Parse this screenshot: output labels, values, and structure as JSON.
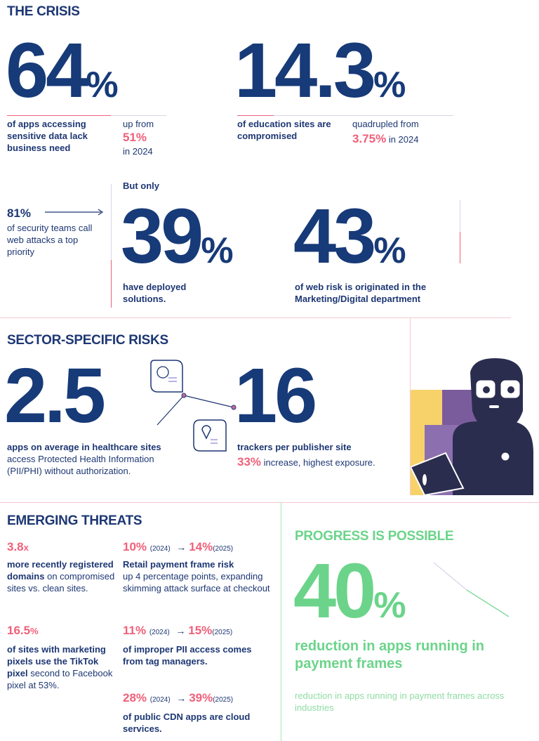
{
  "crisis": {
    "title": "THE CRISIS",
    "stat1": {
      "value": "64",
      "unit": "%",
      "desc": "of apps accessing sensitive data lack business need",
      "prev_label": "up from",
      "prev_value": "51%",
      "prev_year": "in 2024"
    },
    "stat2": {
      "value": "14.3",
      "unit": "%",
      "desc": "of education sites are compromised",
      "prev_label": "quadrupled from",
      "prev_value": "3.75%",
      "prev_year": "in 2024"
    },
    "stat3": {
      "value": "81%",
      "desc": "of security teams call web attacks a top priority"
    },
    "stat4": {
      "intro": "But only",
      "value": "39",
      "unit": "%",
      "desc": "have deployed solutions."
    },
    "stat5": {
      "value": "43",
      "unit": "%",
      "desc": "of web risk is originated in the Marketing/Digital department"
    }
  },
  "sector": {
    "title": "SECTOR-SPECIFIC RISKS",
    "stat1": {
      "value": "2.5",
      "desc_bold": "apps on average in healthcare sites",
      "desc": "access Protected Health Information (PII/PHI) without authorization."
    },
    "stat2": {
      "value": "16",
      "desc_bold": "trackers per publisher site",
      "pct": "33%",
      "desc": "increase, highest exposure."
    },
    "icons": [
      "health-document-icon",
      "location-document-icon"
    ]
  },
  "emerging": {
    "title": "EMERGING THREATS",
    "items": [
      {
        "value": "3.8",
        "unit": "x",
        "desc_bold": "more recently registered domains",
        "desc": "on compromised sites vs. clean sites."
      },
      {
        "from": "10%",
        "from_year": "(2024)",
        "to": "14%",
        "to_year": "(2025)",
        "desc_bold": "Retail payment frame risk",
        "desc": "up 4 percentage points, expanding skimming attack surface at checkout"
      },
      {
        "value": "16.5",
        "unit": "%",
        "desc_bold": "of sites with marketing pixels use the TikTok pixel",
        "desc": "second to Facebook pixel at 53%."
      },
      {
        "from": "11%",
        "from_year": "(2024)",
        "to": "15%",
        "to_year": "(2025)",
        "desc_bold": "of improper PII access comes from tag managers."
      },
      {
        "from": "28%",
        "from_year": "(2024)",
        "to": "39%",
        "to_year": "(2025)",
        "desc_bold": "of public CDN apps are cloud services."
      }
    ]
  },
  "progress": {
    "title": "PROGRESS IS POSSIBLE",
    "value": "40",
    "unit": "%",
    "headline": "reduction in apps running in payment frames",
    "desc": "reduction in apps running in payment frames across industries"
  },
  "colors": {
    "navy": "#1d3773",
    "pink": "#f0607a",
    "green": "#6bd48a"
  }
}
